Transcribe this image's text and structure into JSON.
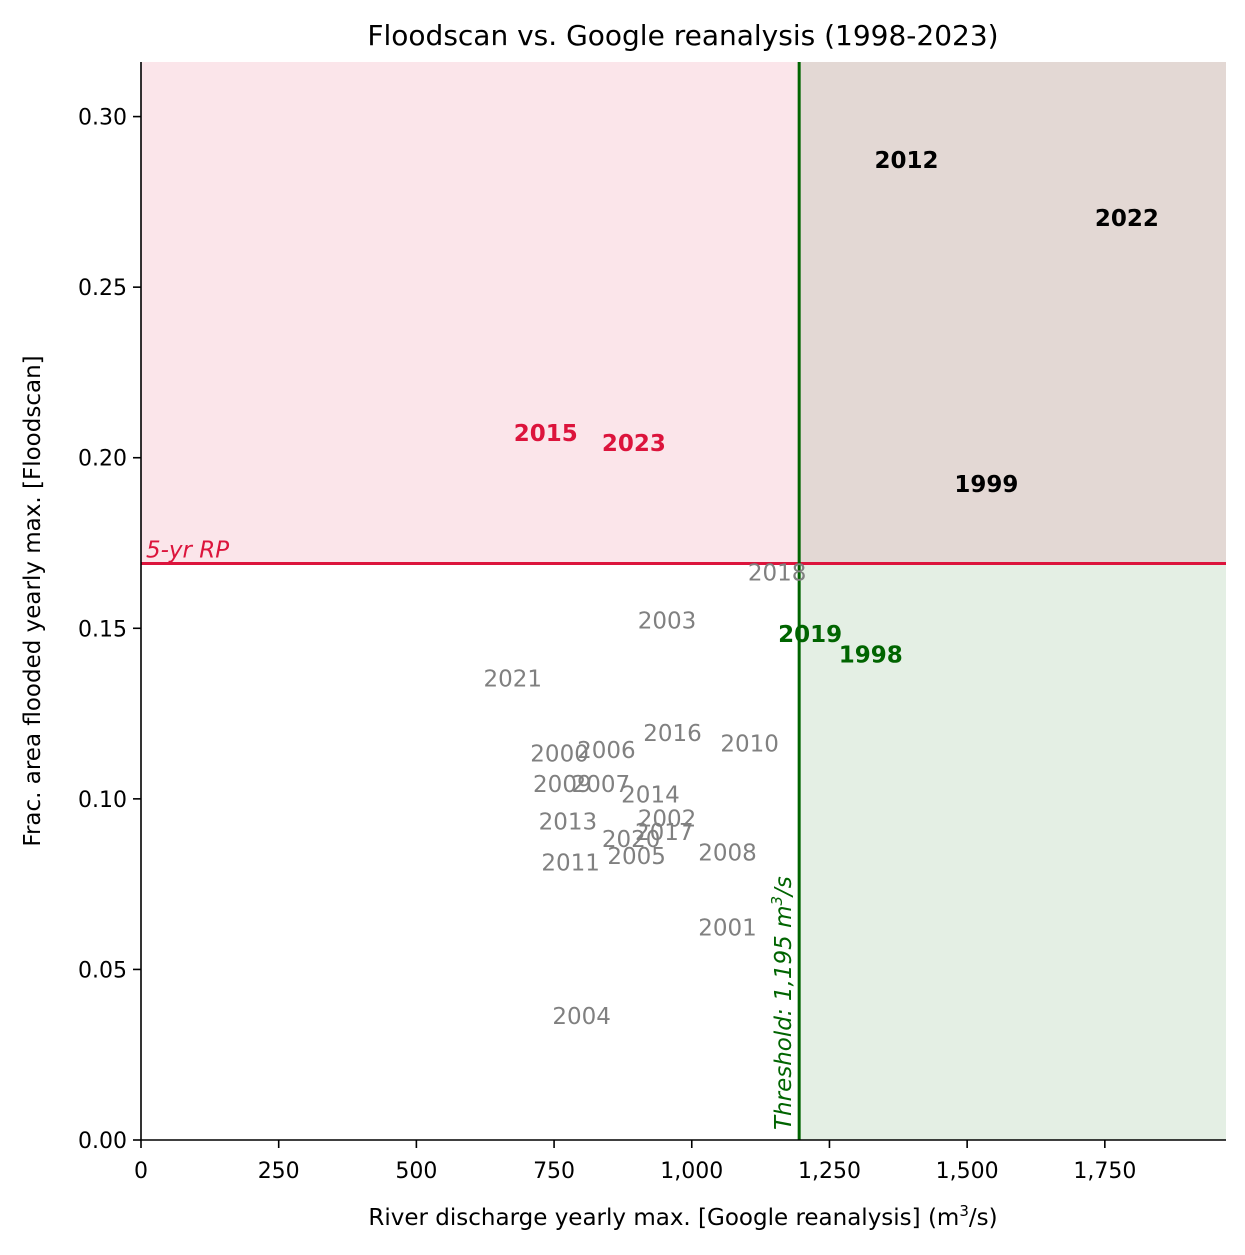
{
  "chart_data": {
    "type": "scatter",
    "title": "Floodscan vs. Google reanalysis (1998-2023)",
    "xlabel": "River discharge yearly max. [Google reanalysis] (m",
    "xlabel_sup": "3",
    "xlabel_end": "/s)",
    "ylabel": "Frac. area flooded yearly max. [Floodscan]",
    "xlim": [
      0,
      1970
    ],
    "ylim": [
      0,
      0.316
    ],
    "x_ticks": [
      0,
      250,
      500,
      750,
      1000,
      1250,
      1500,
      1750
    ],
    "x_tick_labels": [
      "0",
      "250",
      "500",
      "750",
      "1,000",
      "1,250",
      "1,500",
      "1,750"
    ],
    "y_ticks": [
      0,
      0.05,
      0.1,
      0.15,
      0.2,
      0.25,
      0.3
    ],
    "y_tick_labels": [
      "0.00",
      "0.05",
      "0.10",
      "0.15",
      "0.20",
      "0.25",
      "0.30"
    ],
    "thresholds": {
      "x": 1195,
      "x_label": "Threshold: 1,195 m",
      "x_label_sup": "3",
      "x_label_end": "/s",
      "y": 0.169,
      "y_label": "5-yr RP"
    },
    "colors": {
      "red": "#dc143c",
      "green": "#006400",
      "gray": "#808080",
      "black": "#000000",
      "region_top_left": "#fbe5ea",
      "region_top_right": "#e3d8d4",
      "region_bottom_right": "#e4efe4"
    },
    "points": [
      {
        "year": "1998",
        "x": 1325,
        "y": 0.142,
        "group": "green"
      },
      {
        "year": "1999",
        "x": 1535,
        "y": 0.192,
        "group": "black"
      },
      {
        "year": "2000",
        "x": 760,
        "y": 0.113,
        "group": "gray"
      },
      {
        "year": "2001",
        "x": 1065,
        "y": 0.062,
        "group": "gray"
      },
      {
        "year": "2002",
        "x": 955,
        "y": 0.094,
        "group": "gray"
      },
      {
        "year": "2003",
        "x": 955,
        "y": 0.152,
        "group": "gray"
      },
      {
        "year": "2004",
        "x": 800,
        "y": 0.036,
        "group": "gray"
      },
      {
        "year": "2005",
        "x": 900,
        "y": 0.083,
        "group": "gray"
      },
      {
        "year": "2006",
        "x": 845,
        "y": 0.114,
        "group": "gray"
      },
      {
        "year": "2007",
        "x": 835,
        "y": 0.104,
        "group": "gray"
      },
      {
        "year": "2008",
        "x": 1065,
        "y": 0.084,
        "group": "gray"
      },
      {
        "year": "2009",
        "x": 765,
        "y": 0.104,
        "group": "gray"
      },
      {
        "year": "2010",
        "x": 1105,
        "y": 0.116,
        "group": "gray"
      },
      {
        "year": "2011",
        "x": 780,
        "y": 0.081,
        "group": "gray"
      },
      {
        "year": "2012",
        "x": 1390,
        "y": 0.287,
        "group": "black"
      },
      {
        "year": "2013",
        "x": 775,
        "y": 0.093,
        "group": "gray"
      },
      {
        "year": "2014",
        "x": 925,
        "y": 0.101,
        "group": "gray"
      },
      {
        "year": "2015",
        "x": 735,
        "y": 0.207,
        "group": "red"
      },
      {
        "year": "2016",
        "x": 965,
        "y": 0.119,
        "group": "gray"
      },
      {
        "year": "2017",
        "x": 950,
        "y": 0.09,
        "group": "gray"
      },
      {
        "year": "2018",
        "x": 1155,
        "y": 0.166,
        "group": "gray"
      },
      {
        "year": "2019",
        "x": 1215,
        "y": 0.148,
        "group": "green"
      },
      {
        "year": "2020",
        "x": 890,
        "y": 0.088,
        "group": "gray"
      },
      {
        "year": "2021",
        "x": 675,
        "y": 0.135,
        "group": "gray"
      },
      {
        "year": "2022",
        "x": 1790,
        "y": 0.27,
        "group": "black"
      },
      {
        "year": "2023",
        "x": 895,
        "y": 0.204,
        "group": "red"
      }
    ]
  }
}
